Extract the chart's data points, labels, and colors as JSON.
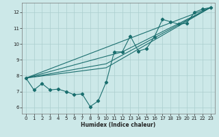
{
  "background_color": "#cce8e8",
  "grid_color": "#aacece",
  "line_color": "#1a6e6e",
  "xlabel": "Humidex (Indice chaleur)",
  "xlim": [
    -0.5,
    23.5
  ],
  "ylim": [
    5.6,
    12.6
  ],
  "yticks": [
    6,
    7,
    8,
    9,
    10,
    11,
    12
  ],
  "xticks": [
    0,
    1,
    2,
    3,
    4,
    5,
    6,
    7,
    8,
    9,
    10,
    11,
    12,
    13,
    14,
    15,
    16,
    17,
    18,
    19,
    20,
    21,
    22,
    23
  ],
  "main_x": [
    0,
    1,
    2,
    3,
    4,
    5,
    6,
    7,
    8,
    9,
    10,
    11,
    12,
    13,
    14,
    15,
    16,
    17,
    18,
    19,
    20,
    21,
    22,
    23
  ],
  "main_y": [
    7.85,
    7.1,
    7.5,
    7.1,
    7.15,
    7.0,
    6.8,
    6.85,
    6.05,
    6.4,
    7.6,
    9.5,
    9.5,
    10.5,
    9.55,
    9.7,
    10.45,
    11.55,
    11.4,
    11.25,
    11.3,
    12.0,
    12.2,
    12.3
  ],
  "trend1_x": [
    0,
    23
  ],
  "trend1_y": [
    7.85,
    12.3
  ],
  "trend2_x": [
    0,
    10,
    23
  ],
  "trend2_y": [
    7.85,
    8.75,
    12.3
  ],
  "trend3_x": [
    0,
    10,
    23
  ],
  "trend3_y": [
    7.85,
    8.5,
    12.3
  ],
  "trend4_x": [
    0,
    12,
    23
  ],
  "trend4_y": [
    7.85,
    9.5,
    12.3
  ]
}
